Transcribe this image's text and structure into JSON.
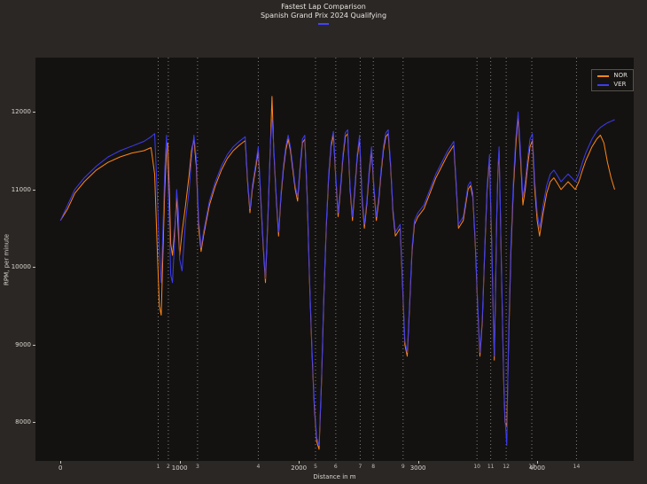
{
  "figure": {
    "title": "Fastest Lap Comparison",
    "subtitle": "Spanish Grand Prix 2024 Qualifying"
  },
  "legend": {
    "entries": [
      {
        "label": "NOR",
        "color": "#ff8519"
      },
      {
        "label": "VER",
        "color": "#3c3cf2"
      }
    ]
  },
  "colors": {
    "figure_bg": "#2b2724",
    "plot_bg": "#141210",
    "text": "#e8e5e0",
    "tick": "#c8c5c0",
    "corner_line": "#bbbbbb",
    "accent_dash": "#4343ff",
    "nor_line": "#ff8519",
    "ver_line": "#3c3cf2"
  },
  "chart_data": {
    "type": "line",
    "title": "Fastest Lap Comparison",
    "subtitle": "Spanish Grand Prix 2024 Qualifying",
    "xlabel": "Distance in m",
    "ylabel": "RPM, per minute",
    "xlim": [
      -210,
      4810
    ],
    "ylim": [
      7500,
      12700
    ],
    "x_ticks": [
      0,
      1000,
      2000,
      3000,
      4000
    ],
    "y_ticks": [
      8000,
      9000,
      10000,
      11000,
      12000
    ],
    "grid": false,
    "legend_position": "upper right",
    "corner_markers": [
      {
        "n": 1,
        "d": 820
      },
      {
        "n": 2,
        "d": 905
      },
      {
        "n": 3,
        "d": 1150
      },
      {
        "n": 4,
        "d": 1660
      },
      {
        "n": 5,
        "d": 2140
      },
      {
        "n": 6,
        "d": 2310
      },
      {
        "n": 7,
        "d": 2515
      },
      {
        "n": 8,
        "d": 2625
      },
      {
        "n": 9,
        "d": 2875
      },
      {
        "n": 10,
        "d": 3495
      },
      {
        "n": 11,
        "d": 3610
      },
      {
        "n": 12,
        "d": 3740
      },
      {
        "n": 13,
        "d": 3955
      },
      {
        "n": 14,
        "d": 4330
      }
    ],
    "x": [
      0,
      60,
      120,
      200,
      300,
      400,
      500,
      600,
      700,
      760,
      790,
      810,
      830,
      845,
      860,
      875,
      890,
      900,
      915,
      925,
      940,
      960,
      975,
      990,
      1000,
      1020,
      1050,
      1080,
      1100,
      1120,
      1140,
      1160,
      1180,
      1200,
      1250,
      1300,
      1350,
      1400,
      1450,
      1500,
      1550,
      1570,
      1590,
      1610,
      1640,
      1660,
      1680,
      1700,
      1720,
      1740,
      1760,
      1775,
      1790,
      1810,
      1830,
      1850,
      1870,
      1890,
      1910,
      1930,
      1950,
      1970,
      1990,
      2010,
      2030,
      2050,
      2070,
      2090,
      2110,
      2130,
      2150,
      2170,
      2190,
      2210,
      2230,
      2250,
      2270,
      2290,
      2310,
      2330,
      2350,
      2370,
      2390,
      2410,
      2430,
      2450,
      2470,
      2490,
      2510,
      2530,
      2550,
      2570,
      2590,
      2610,
      2630,
      2650,
      2670,
      2690,
      2710,
      2730,
      2750,
      2770,
      2790,
      2810,
      2830,
      2850,
      2870,
      2890,
      2910,
      2930,
      2950,
      2970,
      3000,
      3050,
      3100,
      3150,
      3200,
      3250,
      3300,
      3320,
      3340,
      3360,
      3380,
      3400,
      3420,
      3440,
      3460,
      3480,
      3500,
      3520,
      3540,
      3560,
      3580,
      3600,
      3610,
      3620,
      3630,
      3640,
      3650,
      3660,
      3670,
      3680,
      3690,
      3700,
      3710,
      3720,
      3730,
      3745,
      3760,
      3780,
      3800,
      3820,
      3840,
      3860,
      3880,
      3900,
      3920,
      3940,
      3960,
      3980,
      4000,
      4020,
      4050,
      4080,
      4110,
      4140,
      4170,
      4200,
      4230,
      4260,
      4290,
      4320,
      4350,
      4380,
      4410,
      4440,
      4460,
      4480,
      4500,
      4530,
      4560,
      4590,
      4620,
      4650
    ],
    "series": [
      {
        "name": "NOR",
        "color": "#ff8519",
        "values": [
          10600,
          10750,
          10950,
          11100,
          11250,
          11350,
          11420,
          11470,
          11500,
          11540,
          11200,
          10300,
          9500,
          9380,
          10200,
          11000,
          11550,
          11600,
          10900,
          10300,
          10150,
          10500,
          10900,
          10400,
          10150,
          10450,
          10800,
          11200,
          11500,
          11650,
          11300,
          10500,
          10200,
          10400,
          10800,
          11050,
          11250,
          11400,
          11500,
          11570,
          11630,
          11100,
          10700,
          11000,
          11300,
          11500,
          10900,
          10300,
          9800,
          10600,
          11500,
          12200,
          11500,
          10900,
          10400,
          10900,
          11250,
          11500,
          11650,
          11500,
          11250,
          11000,
          10850,
          11250,
          11600,
          11650,
          10900,
          9800,
          8900,
          8200,
          7750,
          7650,
          8500,
          9600,
          10500,
          11150,
          11550,
          11700,
          11150,
          10650,
          11000,
          11400,
          11680,
          11720,
          11000,
          10600,
          11000,
          11400,
          11650,
          10900,
          10500,
          10800,
          11200,
          11500,
          11000,
          10600,
          10850,
          11200,
          11500,
          11680,
          11720,
          11300,
          10700,
          10400,
          10450,
          10500,
          9800,
          9000,
          8850,
          9500,
          10200,
          10550,
          10650,
          10750,
          10950,
          11150,
          11300,
          11450,
          11570,
          11050,
          10500,
          10550,
          10600,
          10800,
          11000,
          11050,
          10900,
          10300,
          9500,
          8850,
          9300,
          10200,
          11000,
          11400,
          10800,
          10200,
          9500,
          8800,
          9600,
          10600,
          11200,
          11500,
          10800,
          10000,
          9200,
          8500,
          8000,
          7950,
          9000,
          10200,
          11000,
          11550,
          11950,
          11400,
          10800,
          11000,
          11300,
          11550,
          11630,
          11000,
          10600,
          10400,
          10700,
          10950,
          11100,
          11150,
          11080,
          11000,
          11050,
          11100,
          11050,
          11000,
          11100,
          11250,
          11380,
          11480,
          11550,
          11600,
          11650,
          11700,
          11600,
          11350,
          11150,
          11000
        ]
      },
      {
        "name": "VER",
        "color": "#3c3cf2",
        "values": [
          10600,
          10800,
          11000,
          11150,
          11300,
          11420,
          11500,
          11560,
          11620,
          11680,
          11720,
          11000,
          10200,
          9800,
          10500,
          11250,
          11700,
          11200,
          10500,
          9900,
          9800,
          10400,
          11000,
          10700,
          10100,
          9950,
          10600,
          11000,
          11400,
          11700,
          11400,
          10600,
          10250,
          10450,
          10850,
          11100,
          11300,
          11450,
          11550,
          11620,
          11680,
          11150,
          10750,
          11050,
          11350,
          11550,
          10950,
          10350,
          9850,
          10650,
          11550,
          11900,
          11550,
          10950,
          10450,
          10950,
          11300,
          11550,
          11700,
          11550,
          11300,
          11050,
          10900,
          11300,
          11650,
          11700,
          10950,
          9850,
          8950,
          8250,
          7800,
          7700,
          8550,
          9650,
          10550,
          11200,
          11600,
          11750,
          11200,
          10700,
          11050,
          11450,
          11730,
          11770,
          11050,
          10650,
          11050,
          11450,
          11700,
          10950,
          10550,
          10850,
          11250,
          11550,
          11050,
          10650,
          10900,
          11250,
          11550,
          11730,
          11770,
          11350,
          10750,
          10450,
          10500,
          10550,
          9850,
          9050,
          8900,
          9550,
          10250,
          10600,
          10700,
          10800,
          11000,
          11200,
          11350,
          11500,
          11620,
          11100,
          10550,
          10600,
          10650,
          10850,
          11050,
          11100,
          10950,
          10350,
          9550,
          8900,
          9350,
          10250,
          11050,
          11450,
          10850,
          10250,
          9550,
          8850,
          9650,
          10650,
          11250,
          11550,
          10850,
          10050,
          9250,
          8550,
          8050,
          7700,
          9100,
          10300,
          11100,
          11650,
          12000,
          11500,
          10900,
          11100,
          11400,
          11650,
          11720,
          11100,
          10700,
          10500,
          10800,
          11050,
          11200,
          11250,
          11180,
          11100,
          11150,
          11200,
          11150,
          11100,
          11200,
          11350,
          11480,
          11580,
          11650,
          11700,
          11750,
          11800,
          11830,
          11860,
          11880,
          11900
        ]
      }
    ]
  }
}
